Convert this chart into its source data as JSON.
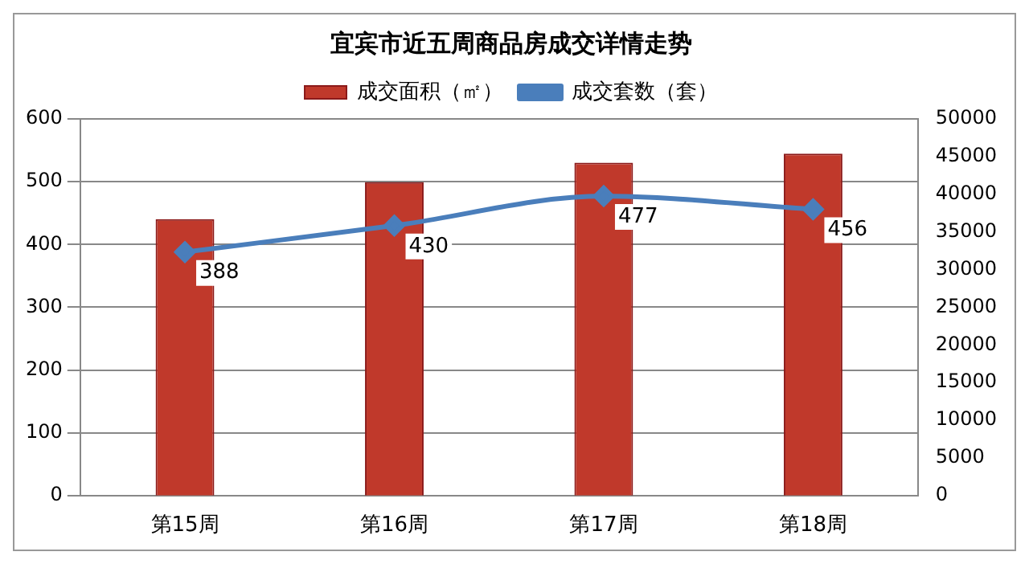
{
  "chart_data": {
    "type": "bar",
    "title": "宜宾市近五周商品房成交详情走势",
    "categories": [
      "第15周",
      "第16周",
      "第17周",
      "第18周"
    ],
    "series": [
      {
        "name": "成交面积（㎡）",
        "axis": "y2",
        "color": "#c0392b",
        "values": [
          36700,
          41600,
          44200,
          45400
        ]
      },
      {
        "name": "成交套数（套）",
        "type": "line",
        "color": "#4a7ebb",
        "values": [
          388,
          430,
          477,
          456
        ],
        "value_labels": [
          "388",
          "430",
          "477",
          "456"
        ],
        "marker": "diamond"
      }
    ],
    "ylim": [
      0,
      600
    ],
    "yticks": [
      0,
      100,
      200,
      300,
      400,
      500,
      600
    ],
    "y2lim": [
      0,
      50000
    ],
    "y2ticks": [
      0,
      5000,
      10000,
      15000,
      20000,
      25000,
      30000,
      35000,
      40000,
      45000,
      50000
    ],
    "grid": "y",
    "legend": "top"
  }
}
